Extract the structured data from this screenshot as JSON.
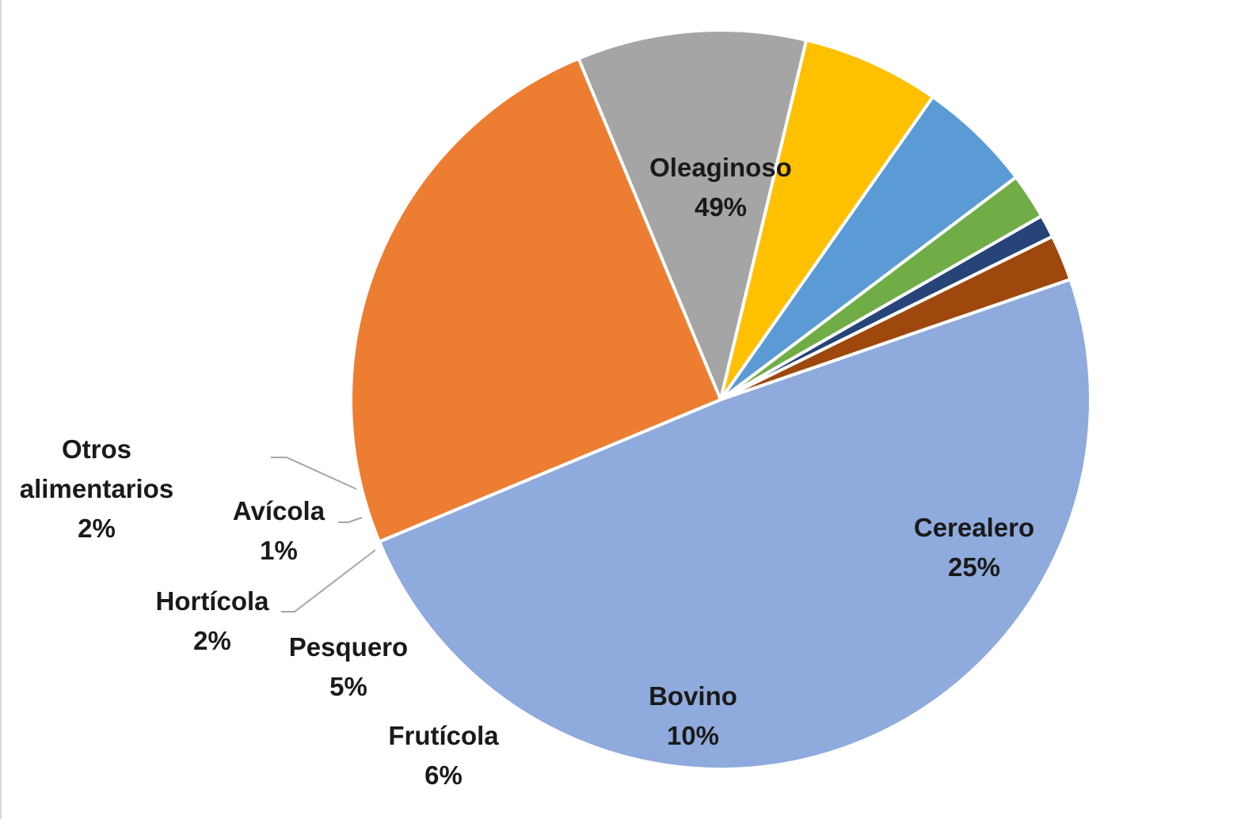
{
  "chart_data": {
    "type": "pie",
    "start_angle_deg": 71,
    "direction": "clockwise",
    "slices": [
      {
        "label": "Oleaginoso",
        "value": 49,
        "display": "49%",
        "color": "#8faadc"
      },
      {
        "label": "Cerealero",
        "value": 25,
        "display": "25%",
        "color": "#ed7d31"
      },
      {
        "label": "Bovino",
        "value": 10,
        "display": "10%",
        "color": "#a5a5a5"
      },
      {
        "label": "Frutícola",
        "value": 6,
        "display": "6%",
        "color": "#ffc000"
      },
      {
        "label": "Pesquero",
        "value": 5,
        "display": "5%",
        "color": "#5b9bd5"
      },
      {
        "label": "Hortícola",
        "value": 2,
        "display": "2%",
        "color": "#70ad47"
      },
      {
        "label": "Avícola",
        "value": 1,
        "display": "1%",
        "color": "#264478"
      },
      {
        "label": "Otros alimentarios",
        "label_lines": [
          "Otros",
          "alimentarios"
        ],
        "value": 2,
        "display": "2%",
        "color": "#9e480e"
      }
    ],
    "title": "",
    "legend": "none",
    "data_labels": "category name and percentage"
  }
}
